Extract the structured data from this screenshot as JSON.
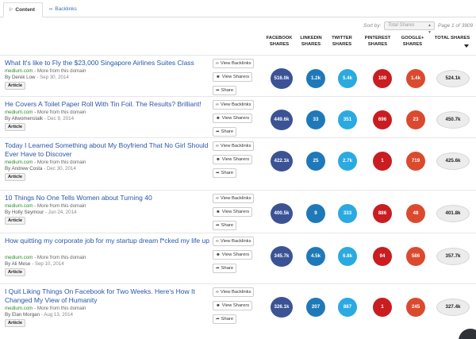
{
  "tabs": [
    {
      "label": "Content",
      "icon": "megaphone-icon",
      "active": true
    },
    {
      "label": "Backlinks",
      "icon": "link-icon",
      "active": false
    }
  ],
  "sort": {
    "label": "Sort by:",
    "selected": "Total Shares",
    "page_info": "Page 1 of 3909"
  },
  "columns": {
    "facebook": [
      "FACEBOOK",
      "SHARES"
    ],
    "linkedin": [
      "LINKEDIN",
      "SHARES"
    ],
    "twitter": [
      "TWITTER",
      "SHARES"
    ],
    "pinterest": [
      "PINTEREST",
      "SHARES"
    ],
    "googleplus": [
      "GOOGLE+",
      "SHARES"
    ],
    "total": [
      "TOTAL SHARES"
    ]
  },
  "actions": {
    "backlinks": "View Backlinks",
    "sharers": "View Sharers",
    "share": "Share"
  },
  "colors": {
    "facebook": "#3b5395",
    "linkedin": "#1f79b8",
    "twitter": "#2aaae0",
    "pinterest": "#c91d22",
    "googleplus": "#db4a2e",
    "link": "#2a56a8",
    "domain": "#2e8b2e"
  },
  "articles": [
    {
      "title": "What It's like to Fly the $23,000 Singapore Airlines Suites Class",
      "domain": "medium.com",
      "more": " - More from this domain",
      "author": "By Derek Low",
      "date": " - Sep 30, 2014",
      "type": "Article",
      "facebook": "516.0k",
      "linkedin": "1.2k",
      "twitter": "5.4k",
      "pinterest": "100",
      "googleplus": "1.4k",
      "total": "524.1k"
    },
    {
      "title": "He Covers A Toilet Paper Roll With Tin Foil. The Results? Brilliant!",
      "domain": "medium.com",
      "more": " - More from this domain",
      "author": "By Allwomenstalk",
      "date": " - Dec 9, 2014",
      "type": "Article",
      "facebook": "449.6k",
      "linkedin": "33",
      "twitter": "351",
      "pinterest": "696",
      "googleplus": "23",
      "total": "450.7k"
    },
    {
      "title": "Today I Learned Something about My Boyfriend That No Girl Should Ever Have to Discover",
      "domain": "medium.com",
      "more": " - More from this domain",
      "author": "By Andrew Costa",
      "date": " - Dec 30, 2014",
      "type": "Article",
      "facebook": "422.1k",
      "linkedin": "25",
      "twitter": "2.7k",
      "pinterest": "1",
      "googleplus": "719",
      "total": "425.6k"
    },
    {
      "title": "10 Things No One Tells Women about Turning 40",
      "domain": "medium.com",
      "more": " - More from this domain",
      "author": "By Holly Seymour",
      "date": " - Jun 24, 2014",
      "type": "Article",
      "facebook": "400.5k",
      "linkedin": "9",
      "twitter": "333",
      "pinterest": "886",
      "googleplus": "48",
      "total": "401.8k"
    },
    {
      "title": "How quitting my corporate job for my startup dream f*cked my life up",
      "domain": "medium.com",
      "more": " - More from this domain",
      "author": "By Ali Mese",
      "date": " - Sep 10, 2014",
      "type": "Article",
      "facebook": "345.7k",
      "linkedin": "4.5k",
      "twitter": "6.8k",
      "pinterest": "94",
      "googleplus": "586",
      "total": "357.7k"
    },
    {
      "title": "I Quit Liking Things On Facebook for Two Weeks. Here's How It Changed My View of Humanity",
      "domain": "medium.com",
      "more": " - More from this domain",
      "author": "By Elan Morgan",
      "date": " - Aug 13, 2014",
      "type": "Article",
      "facebook": "326.1k",
      "linkedin": "207",
      "twitter": "887",
      "pinterest": "1",
      "googleplus": "245",
      "total": "327.4k"
    }
  ]
}
